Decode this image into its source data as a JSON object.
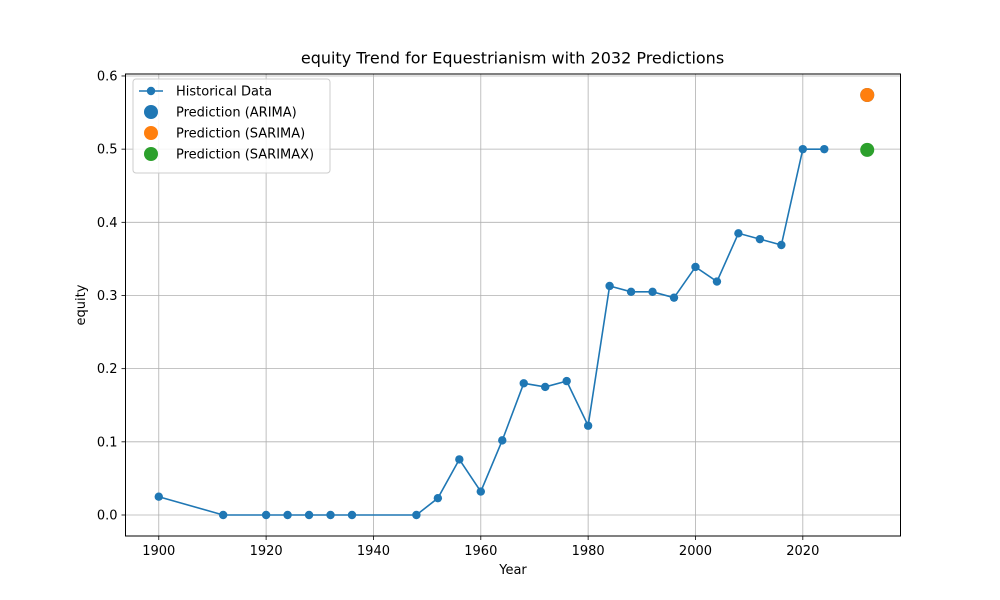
{
  "chart_data": {
    "type": "line",
    "title": "equity Trend for Equestrianism with 2032 Predictions",
    "xlabel": "Year",
    "ylabel": "equity",
    "xlim": [
      1893.8,
      2038.2
    ],
    "ylim": [
      -0.0287,
      0.6027
    ],
    "xticks": [
      1900,
      1920,
      1940,
      1960,
      1980,
      2000,
      2020
    ],
    "yticks": [
      0.0,
      0.1,
      0.2,
      0.3,
      0.4,
      0.5,
      0.6
    ],
    "xtick_labels": [
      "1900",
      "1920",
      "1940",
      "1960",
      "1980",
      "2000",
      "2020"
    ],
    "ytick_labels": [
      "0.0",
      "0.1",
      "0.2",
      "0.3",
      "0.4",
      "0.5",
      "0.6"
    ],
    "grid": true,
    "legend_position": "upper-left",
    "series": [
      {
        "name": "Historical Data",
        "kind": "line-marker",
        "color": "#1f77b4",
        "x": [
          1900,
          1912,
          1920,
          1924,
          1928,
          1932,
          1936,
          1948,
          1952,
          1956,
          1960,
          1964,
          1968,
          1972,
          1976,
          1980,
          1984,
          1988,
          1992,
          1996,
          2000,
          2004,
          2008,
          2012,
          2016,
          2020,
          2024
        ],
        "y": [
          0.025,
          0.0,
          0.0,
          0.0,
          0.0,
          0.0,
          0.0,
          0.0,
          0.023,
          0.076,
          0.032,
          0.102,
          0.18,
          0.175,
          0.183,
          0.122,
          0.313,
          0.305,
          0.305,
          0.297,
          0.339,
          0.319,
          0.385,
          0.377,
          0.369,
          0.5,
          0.5
        ]
      },
      {
        "name": "Prediction (ARIMA)",
        "kind": "point",
        "color": "#1f77b4",
        "x": [
          2032
        ],
        "y": [
          0.574
        ]
      },
      {
        "name": "Prediction (SARIMA)",
        "kind": "point",
        "color": "#ff7f0e",
        "x": [
          2032
        ],
        "y": [
          0.574
        ]
      },
      {
        "name": "Prediction (SARIMAX)",
        "kind": "point",
        "color": "#2ca02c",
        "x": [
          2032
        ],
        "y": [
          0.499
        ]
      }
    ]
  }
}
